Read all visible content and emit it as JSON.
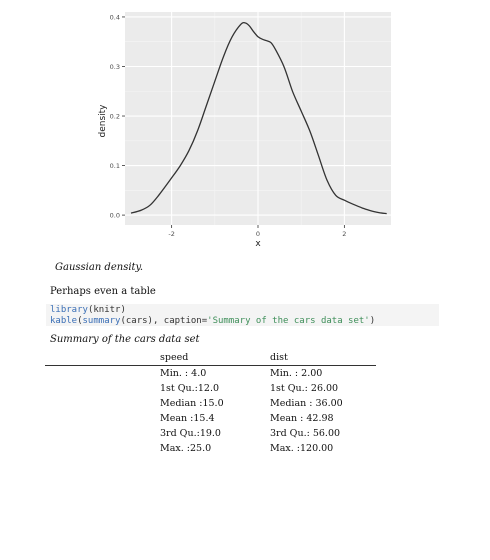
{
  "chart_data": {
    "type": "line",
    "title": "",
    "xlabel": "x",
    "ylabel": "density",
    "xlim": [
      -3.08,
      3.08
    ],
    "ylim": [
      -0.02,
      0.41
    ],
    "xticks": [
      -2,
      0,
      2
    ],
    "xtick_labels": [
      "-2",
      "0",
      "2"
    ],
    "yticks": [
      0.0,
      0.1,
      0.2,
      0.3,
      0.4
    ],
    "ytick_labels": [
      "0.0",
      "0.1",
      "0.2",
      "0.3",
      "0.4"
    ],
    "grid": true,
    "background": "#ebebeb",
    "line_color": "#333333",
    "series": [
      {
        "x": [
          -2.94,
          -2.7,
          -2.5,
          -2.3,
          -2.0,
          -1.8,
          -1.6,
          -1.4,
          -1.2,
          -1.0,
          -0.8,
          -0.6,
          -0.4,
          -0.3,
          -0.2,
          -0.1,
          0.0,
          0.1,
          0.2,
          0.3,
          0.4,
          0.6,
          0.8,
          1.0,
          1.2,
          1.4,
          1.6,
          1.8,
          2.0,
          2.2,
          2.4,
          2.6,
          2.8,
          2.98
        ],
        "y": [
          0.004,
          0.01,
          0.02,
          0.04,
          0.075,
          0.1,
          0.13,
          0.17,
          0.22,
          0.27,
          0.32,
          0.36,
          0.385,
          0.388,
          0.382,
          0.37,
          0.36,
          0.355,
          0.352,
          0.348,
          0.335,
          0.3,
          0.25,
          0.21,
          0.17,
          0.12,
          0.07,
          0.04,
          0.03,
          0.022,
          0.015,
          0.009,
          0.005,
          0.003
        ]
      }
    ]
  },
  "figure_caption": "Gaussian density.",
  "paragraph": "Perhaps even a table",
  "code": {
    "line1_fn": "library",
    "line1_rest": "(knitr)",
    "line2_fn1": "kable",
    "line2_mid1": "(",
    "line2_fn2": "summary",
    "line2_mid2": "(cars), caption=",
    "line2_str": "'Summary of the cars data set'",
    "line2_end": ")"
  },
  "table": {
    "caption": "Summary of the cars data set",
    "headers": [
      "",
      "speed",
      "dist"
    ],
    "rows": [
      [
        "",
        "Min. : 4.0",
        "Min. : 2.00"
      ],
      [
        "",
        "1st Qu.:12.0",
        "1st Qu.: 26.00"
      ],
      [
        "",
        "Median :15.0",
        "Median : 36.00"
      ],
      [
        "",
        "Mean :15.4",
        "Mean : 42.98"
      ],
      [
        "",
        "3rd Qu.:19.0",
        "3rd Qu.: 56.00"
      ],
      [
        "",
        "Max. :25.0",
        "Max. :120.00"
      ]
    ]
  }
}
